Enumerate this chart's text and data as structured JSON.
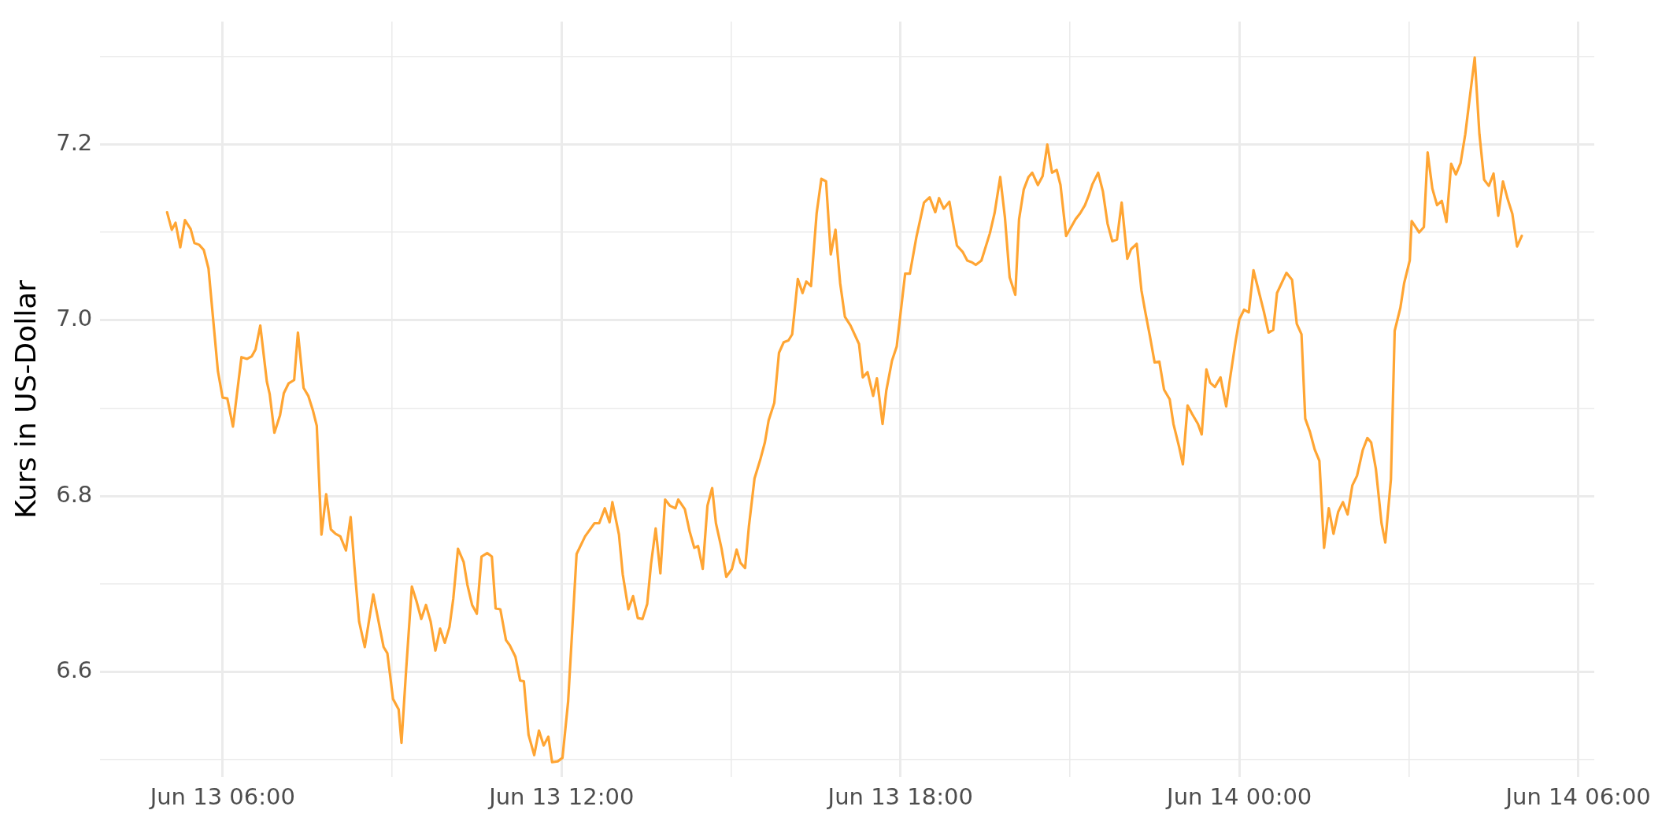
{
  "chart_data": {
    "type": "line",
    "ylabel": "Kurs in US-Dollar",
    "color": "#ffa533",
    "grid": true,
    "xlim": [
      "--06-13T03:50",
      "--06-14T06:17"
    ],
    "ylim": [
      6.48,
      7.34
    ],
    "xticks": [
      {
        "value": "--06-13T06:00",
        "label": "Jun 13 06:00"
      },
      {
        "value": "--06-13T09:00",
        "label": null
      },
      {
        "value": "--06-13T12:00",
        "label": "Jun 13 12:00"
      },
      {
        "value": "--06-13T15:00",
        "label": null
      },
      {
        "value": "--06-13T18:00",
        "label": "Jun 13 18:00"
      },
      {
        "value": "--06-13T21:00",
        "label": null
      },
      {
        "value": "--06-14T00:00",
        "label": "Jun 14 00:00"
      },
      {
        "value": "--06-14T03:00",
        "label": null
      },
      {
        "value": "--06-14T06:00",
        "label": "Jun 14 06:00"
      }
    ],
    "yticks": [
      {
        "value": 6.5,
        "label": null
      },
      6.6,
      {
        "value": 6.7,
        "label": null
      },
      6.8,
      {
        "value": 6.9,
        "label": null
      },
      {
        "value": 7,
        "label": "7.0"
      },
      {
        "value": 7.1,
        "label": null
      },
      7.2,
      {
        "value": 7.3,
        "label": null
      }
    ],
    "x": [
      "--06-13T05:01",
      "--06-13T05:06",
      "--06-13T05:10",
      "--06-13T05:15",
      "--06-13T05:20",
      "--06-13T05:26",
      "--06-13T05:30",
      "--06-13T05:35",
      "--06-13T05:40",
      "--06-13T05:45",
      "--06-13T05:55",
      "--06-13T06:00",
      "--06-13T06:05",
      "--06-13T06:11",
      "--06-13T06:20",
      "--06-13T06:26",
      "--06-13T06:31",
      "--06-13T06:35",
      "--06-13T06:40",
      "--06-13T06:47",
      "--06-13T06:50",
      "--06-13T06:55",
      "--06-13T07:01",
      "--06-13T07:05",
      "--06-13T07:10",
      "--06-13T07:16",
      "--06-13T07:20",
      "--06-13T07:26",
      "--06-13T07:31",
      "--06-13T07:36",
      "--06-13T07:40",
      "--06-13T07:45",
      "--06-13T07:50",
      "--06-13T07:55",
      "--06-13T08:00",
      "--06-13T08:05",
      "--06-13T08:11",
      "--06-13T08:16",
      "--06-13T08:20",
      "--06-13T08:25",
      "--06-13T08:31",
      "--06-13T08:40",
      "--06-13T08:51",
      "--06-13T08:55",
      "--06-13T09:01",
      "--06-13T09:07",
      "--06-13T09:10",
      "--06-13T09:15",
      "--06-13T09:21",
      "--06-13T09:26",
      "--06-13T09:31",
      "--06-13T09:36",
      "--06-13T09:41",
      "--06-13T09:46",
      "--06-13T09:51",
      "--06-13T09:56",
      "--06-13T10:01",
      "--06-13T10:05",
      "--06-13T10:10",
      "--06-13T10:16",
      "--06-13T10:20",
      "--06-13T10:25",
      "--06-13T10:30",
      "--06-13T10:35",
      "--06-13T10:41",
      "--06-13T10:46",
      "--06-13T10:50",
      "--06-13T10:55",
      "--06-13T11:01",
      "--06-13T11:05",
      "--06-13T11:11",
      "--06-13T11:16",
      "--06-13T11:20",
      "--06-13T11:25",
      "--06-13T11:31",
      "--06-13T11:36",
      "--06-13T11:41",
      "--06-13T11:46",
      "--06-13T11:50",
      "--06-13T11:56",
      "--06-13T12:01",
      "--06-13T12:07",
      "--06-13T12:16",
      "--06-13T12:25",
      "--06-13T12:35",
      "--06-13T12:40",
      "--06-13T12:46",
      "--06-13T12:51",
      "--06-13T12:54",
      "--06-13T13:01",
      "--06-13T13:05",
      "--06-13T13:11",
      "--06-13T13:16",
      "--06-13T13:21",
      "--06-13T13:26",
      "--06-13T13:31",
      "--06-13T13:35",
      "--06-13T13:40",
      "--06-13T13:45",
      "--06-13T13:50",
      "--06-13T13:55",
      "--06-13T14:01",
      "--06-13T14:04",
      "--06-13T14:11",
      "--06-13T14:16",
      "--06-13T14:21",
      "--06-13T14:25",
      "--06-13T14:30",
      "--06-13T14:35",
      "--06-13T14:40",
      "--06-13T14:44",
      "--06-13T14:50",
      "--06-13T14:55",
      "--06-13T15:01",
      "--06-13T15:06",
      "--06-13T15:10",
      "--06-13T15:15",
      "--06-13T15:19",
      "--06-13T15:25",
      "--06-13T15:31",
      "--06-13T15:36",
      "--06-13T15:40",
      "--06-13T15:46",
      "--06-13T15:51",
      "--06-13T15:56",
      "--06-13T16:01",
      "--06-13T16:05",
      "--06-13T16:11",
      "--06-13T16:16",
      "--06-13T16:20",
      "--06-13T16:25",
      "--06-13T16:31",
      "--06-13T16:36",
      "--06-13T16:41",
      "--06-13T16:46",
      "--06-13T16:51",
      "--06-13T16:56",
      "--06-13T17:01",
      "--06-13T17:07",
      "--06-13T17:16",
      "--06-13T17:20",
      "--06-13T17:25",
      "--06-13T17:31",
      "--06-13T17:35",
      "--06-13T17:41",
      "--06-13T17:45",
      "--06-13T17:51",
      "--06-13T17:56",
      "--06-13T18:05",
      "--06-13T18:10",
      "--06-13T18:17",
      "--06-13T18:25",
      "--06-13T18:31",
      "--06-13T18:37",
      "--06-13T18:41",
      "--06-13T18:46",
      "--06-13T18:52",
      "--06-13T19:00",
      "--06-13T19:06",
      "--06-13T19:11",
      "--06-13T19:16",
      "--06-13T19:20",
      "--06-13T19:26",
      "--06-13T19:35",
      "--06-13T19:40",
      "--06-13T19:46",
      "--06-13T19:51",
      "--06-13T19:56",
      "--06-13T20:02",
      "--06-13T20:06",
      "--06-13T20:11",
      "--06-13T20:16",
      "--06-13T20:20",
      "--06-13T20:26",
      "--06-13T20:31",
      "--06-13T20:36",
      "--06-13T20:41",
      "--06-13T20:46",
      "--06-13T20:50",
      "--06-13T20:56",
      "--06-13T21:06",
      "--06-13T21:11",
      "--06-13T21:16",
      "--06-13T21:20",
      "--06-13T21:24",
      "--06-13T21:30",
      "--06-13T21:35",
      "--06-13T21:40",
      "--06-13T21:45",
      "--06-13T21:50",
      "--06-13T21:55",
      "--06-13T22:01",
      "--06-13T22:05",
      "--06-13T22:11",
      "--06-13T22:16",
      "--06-13T22:20",
      "--06-13T22:25",
      "--06-13T22:30",
      "--06-13T22:35",
      "--06-13T22:40",
      "--06-13T22:46",
      "--06-13T22:50",
      "--06-13T22:56",
      "--06-13T23:00",
      "--06-13T23:05",
      "--06-13T23:10",
      "--06-13T23:16",
      "--06-13T23:20",
      "--06-13T23:25",
      "--06-13T23:29",
      "--06-13T23:34",
      "--06-13T23:40",
      "--06-13T23:46",
      "--06-13T23:50",
      "--06-13T23:56",
      "--06-14T00:00",
      "--06-14T00:05",
      "--06-14T00:10",
      "--06-14T00:15",
      "--06-14T00:26",
      "--06-14T00:31",
      "--06-14T00:36",
      "--06-14T00:40",
      "--06-14T00:50",
      "--06-14T00:56",
      "--06-14T01:01",
      "--06-14T01:06",
      "--06-14T01:10",
      "--06-14T01:15",
      "--06-14T01:20",
      "--06-14T01:25",
      "--06-14T01:30",
      "--06-14T01:35",
      "--06-14T01:40",
      "--06-14T01:45",
      "--06-14T01:50",
      "--06-14T01:55",
      "--06-14T02:00",
      "--06-14T02:05",
      "--06-14T02:11",
      "--06-14T02:16",
      "--06-14T02:20",
      "--06-14T02:25",
      "--06-14T02:31",
      "--06-14T02:35",
      "--06-14T02:41",
      "--06-14T02:45",
      "--06-14T02:51",
      "--06-14T02:55",
      "--06-14T03:01",
      "--06-14T03:03",
      "--06-14T03:11",
      "--06-14T03:16",
      "--06-14T03:20",
      "--06-14T03:25",
      "--06-14T03:30",
      "--06-14T03:35",
      "--06-14T03:40",
      "--06-14T03:45",
      "--06-14T03:50",
      "--06-14T03:55",
      "--06-14T04:00",
      "--06-14T04:10",
      "--06-14T04:15",
      "--06-14T04:20",
      "--06-14T04:25",
      "--06-14T04:30",
      "--06-14T04:35",
      "--06-14T04:40",
      "--06-14T04:45",
      "--06-14T04:50",
      "--06-14T04:55",
      "--06-14T05:00"
    ],
    "values": [
      7.123,
      7.103,
      7.111,
      7.083,
      7.114,
      7.104,
      7.088,
      7.086,
      7.08,
      7.059,
      6.942,
      6.912,
      6.911,
      6.879,
      6.958,
      6.956,
      6.959,
      6.967,
      6.994,
      6.93,
      6.916,
      6.872,
      6.892,
      6.917,
      6.928,
      6.932,
      6.986,
      6.923,
      6.914,
      6.897,
      6.88,
      6.756,
      6.802,
      6.762,
      6.757,
      6.754,
      6.738,
      6.776,
      6.72,
      6.657,
      6.628,
      6.688,
      6.628,
      6.621,
      6.569,
      6.557,
      6.519,
      6.603,
      6.697,
      6.68,
      6.66,
      6.676,
      6.657,
      6.624,
      6.649,
      6.633,
      6.651,
      6.683,
      6.74,
      6.725,
      6.699,
      6.676,
      6.666,
      6.731,
      6.735,
      6.731,
      6.672,
      6.671,
      6.636,
      6.63,
      6.617,
      6.59,
      6.589,
      6.528,
      6.505,
      6.533,
      6.516,
      6.526,
      6.497,
      6.498,
      6.502,
      6.566,
      6.734,
      6.754,
      6.769,
      6.769,
      6.786,
      6.77,
      6.793,
      6.756,
      6.711,
      6.671,
      6.686,
      6.661,
      6.66,
      6.677,
      6.722,
      6.763,
      6.712,
      6.796,
      6.789,
      6.786,
      6.796,
      6.785,
      6.76,
      6.741,
      6.743,
      6.717,
      6.789,
      6.809,
      6.769,
      6.74,
      6.708,
      6.717,
      6.739,
      6.724,
      6.718,
      6.765,
      6.82,
      6.841,
      6.861,
      6.886,
      6.906,
      6.963,
      6.975,
      6.977,
      6.984,
      7.047,
      7.031,
      7.044,
      7.039,
      7.122,
      7.161,
      7.158,
      7.075,
      7.103,
      7.042,
      7.004,
      6.994,
      6.973,
      6.935,
      6.941,
      6.914,
      6.934,
      6.882,
      6.92,
      6.954,
      6.97,
      7.053,
      7.053,
      7.095,
      7.134,
      7.14,
      7.123,
      7.139,
      7.127,
      7.135,
      7.085,
      7.078,
      7.068,
      7.066,
      7.063,
      7.068,
      7.099,
      7.122,
      7.163,
      7.117,
      7.049,
      7.029,
      7.115,
      7.149,
      7.163,
      7.168,
      7.154,
      7.164,
      7.2,
      7.168,
      7.171,
      7.154,
      7.096,
      7.115,
      7.122,
      7.131,
      7.142,
      7.155,
      7.168,
      7.147,
      7.11,
      7.09,
      7.092,
      7.134,
      7.07,
      7.081,
      7.087,
      7.034,
      7.01,
      6.982,
      6.952,
      6.953,
      6.921,
      6.91,
      6.882,
      6.856,
      6.836,
      6.903,
      6.893,
      6.882,
      6.87,
      6.944,
      6.929,
      6.924,
      6.935,
      6.902,
      6.933,
      6.976,
      7.001,
      7.012,
      7.009,
      7.057,
      7.01,
      6.986,
      6.989,
      7.031,
      7.054,
      7.046,
      6.996,
      6.984,
      6.888,
      6.873,
      6.853,
      6.84,
      6.741,
      6.786,
      6.757,
      6.782,
      6.793,
      6.779,
      6.812,
      6.823,
      6.852,
      6.866,
      6.861,
      6.831,
      6.769,
      6.747,
      6.819,
      6.988,
      7.014,
      7.042,
      7.068,
      7.113,
      7.1,
      7.106,
      7.191,
      7.15,
      7.131,
      7.136,
      7.112,
      7.178,
      7.166,
      7.179,
      7.212,
      7.299,
      7.212,
      7.16,
      7.153,
      7.167,
      7.119,
      7.158,
      7.138,
      7.121,
      7.084,
      7.096
    ]
  }
}
